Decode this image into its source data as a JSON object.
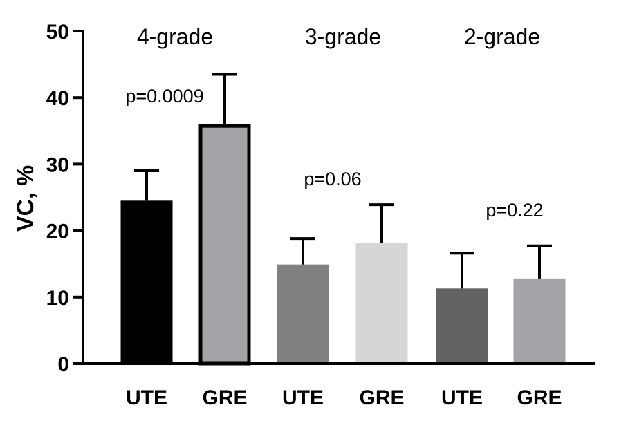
{
  "chart_data": {
    "type": "bar",
    "title": "",
    "xlabel": "",
    "ylabel": "VC, %",
    "ylim": [
      0,
      50
    ],
    "yticks": [
      0,
      10,
      20,
      30,
      40,
      50
    ],
    "groups": [
      {
        "name": "4-grade",
        "p_value": "p=0.0009",
        "bars": [
          {
            "label": "UTE",
            "value": 24.5,
            "error": 4.5,
            "color": "#000000"
          },
          {
            "label": "GRE",
            "value": 36.0,
            "error": 7.5,
            "color": "#a3a3a8",
            "outline": "#000000"
          }
        ]
      },
      {
        "name": "3-grade",
        "p_value": "p=0.06",
        "bars": [
          {
            "label": "UTE",
            "value": 14.9,
            "error": 3.9,
            "color": "#808080"
          },
          {
            "label": "GRE",
            "value": 18.1,
            "error": 5.8,
            "color": "#d6d6d6"
          }
        ]
      },
      {
        "name": "2-grade",
        "p_value": "p=0.22",
        "bars": [
          {
            "label": "UTE",
            "value": 11.3,
            "error": 5.3,
            "color": "#626262"
          },
          {
            "label": "GRE",
            "value": 12.8,
            "error": 4.9,
            "color": "#a3a3a8"
          }
        ]
      }
    ]
  }
}
